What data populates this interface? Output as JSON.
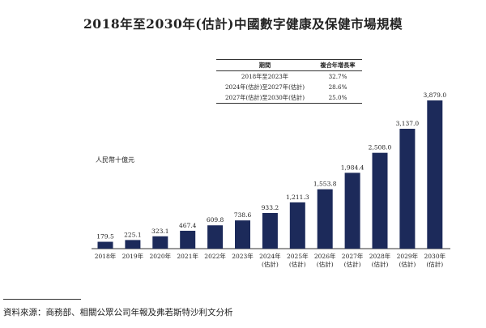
{
  "title": "2018年至2030年(估計)中國數字健康及保健市場規模",
  "unit_label": "人民幣十億元",
  "cagr_table": {
    "headers": [
      "期間",
      "複合年增長率"
    ],
    "rows": [
      {
        "period": "2018年至2023年",
        "rate": "32.7%"
      },
      {
        "period": "2024年(估計)至2027年(估計)",
        "rate": "28.6%"
      },
      {
        "period": "2027年(估計)至2030年(估計)",
        "rate": "25.0%"
      }
    ]
  },
  "source": "資料來源：商務部、相關公眾公司年報及弗若斯特沙利文分析",
  "colors": {
    "bar": "#1c2a5a"
  },
  "chart_data": {
    "type": "bar",
    "title": "2018年至2030年(估計)中國數字健康及保健市場規模",
    "ylabel": "人民幣十億元",
    "categories": [
      "2018年",
      "2019年",
      "2020年",
      "2021年",
      "2022年",
      "2023年",
      "2024年\n(估計)",
      "2025年\n(估計)",
      "2026年\n(估計)",
      "2027年\n(估計)",
      "2028年\n(估計)",
      "2029年\n(估計)",
      "2030年\n(估計)"
    ],
    "values": [
      179.5,
      225.1,
      323.1,
      467.4,
      609.8,
      738.6,
      933.2,
      1211.3,
      1553.8,
      1984.4,
      2508.0,
      3137.0,
      3879.0
    ],
    "value_labels": [
      "179.5",
      "225.1",
      "323.1",
      "467.4",
      "609.8",
      "738.6",
      "933.2",
      "1,211.3",
      "1,553.8",
      "1,984.4",
      "2,508.0",
      "3,137.0",
      "3,879.0"
    ],
    "ylim": [
      0,
      3879.0
    ],
    "grid": false
  }
}
